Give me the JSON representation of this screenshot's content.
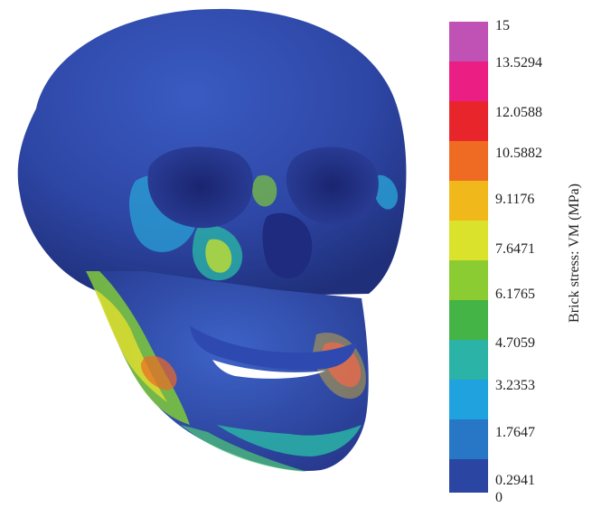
{
  "figure": {
    "image_subject": "skull",
    "legend": {
      "title": "Brick stress: VM (MPa)",
      "ticks": [
        "15",
        "13.5294",
        "12.0588",
        "10.5882",
        "9.1176",
        "7.6471",
        "6.1765",
        "4.7059",
        "3.2353",
        "1.7647",
        "0.2941",
        "0"
      ],
      "tick_values": [
        15,
        13.5294,
        12.0588,
        10.5882,
        9.1176,
        7.6471,
        6.1765,
        4.7059,
        3.2353,
        1.7647,
        0.2941,
        0
      ],
      "colors": [
        "#c052b5",
        "#ea1e83",
        "#e8252b",
        "#ef6a23",
        "#f1b81c",
        "#dbe22c",
        "#8ccc33",
        "#45b447",
        "#2ab3a6",
        "#1fa2de",
        "#2877c6",
        "#2b45a3"
      ]
    }
  }
}
